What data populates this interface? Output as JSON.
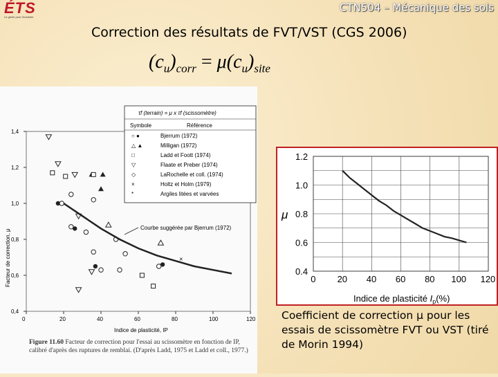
{
  "header": {
    "logo_text": "ÉTS",
    "logo_sub": "Le génie pour l'industrie",
    "course_title": "CTN504 – Mécanique des sols"
  },
  "slide": {
    "title": "Correction des résultats de FVT/VST (CGS 2006)",
    "formula": {
      "lhs_var": "c",
      "lhs_sub": "u",
      "lhs_index": "corr",
      "mu": "μ",
      "rhs_var": "c",
      "rhs_sub": "u",
      "rhs_index": "site",
      "equals": "="
    },
    "caption": "Coefficient de correction μ pour les essais de scissomètre FVT ou VST (tiré de Morin 1994)"
  },
  "scan": {
    "legend_header": "τf (terrain) = μ x τf (scissomètre)",
    "legend_col_symbol": "Symbole",
    "legend_col_ref": "Référence",
    "legend_refs": [
      "Bjerrum (1972)",
      "Milligan (1972)",
      "Ladd et Foott (1974)",
      "Flaate et Preber (1974)",
      "LaRochelle et coll. (1974)",
      "Holtz et Holm (1979)",
      "Argiles litées et varvées"
    ],
    "curve_label": "Courbe suggérée par Bjerrum (1972)",
    "figure_caption_bold": "Figure 11.60",
    "figure_caption": "Facteur de correction pour l'essai au scissomètre en fonction de IP, calibré d'après des ruptures de remblai. (D'après Ladd, 1975 et Ladd et coll., 1977.)",
    "ylabel": "Facteur de correction, μ",
    "xlabel": "Indice de plasticité, IP"
  },
  "chart_data": [
    {
      "type": "scatter",
      "title": "",
      "xlabel": "Indice de plasticité, IP",
      "ylabel": "Facteur de correction, μ",
      "xlim": [
        0,
        120
      ],
      "ylim": [
        0.4,
        1.4
      ],
      "xticks": [
        0,
        20,
        40,
        60,
        80,
        100,
        120
      ],
      "yticks": [
        0.4,
        0.6,
        0.8,
        1.0,
        1.2,
        1.4
      ],
      "ytick_labels": [
        "0,4",
        "0,6",
        "0,8",
        "1,0",
        "1,2",
        "1,4"
      ],
      "curve": {
        "x": [
          20,
          30,
          40,
          50,
          60,
          70,
          80,
          90,
          100,
          110
        ],
        "y": [
          1.0,
          0.93,
          0.86,
          0.8,
          0.75,
          0.71,
          0.68,
          0.65,
          0.63,
          0.61
        ]
      },
      "points": [
        {
          "x": 12,
          "y": 1.37,
          "m": "tri-down-open"
        },
        {
          "x": 17,
          "y": 1.22,
          "m": "tri-down-open"
        },
        {
          "x": 14,
          "y": 1.17,
          "m": "square-open"
        },
        {
          "x": 21,
          "y": 1.15,
          "m": "square-open"
        },
        {
          "x": 26,
          "y": 1.16,
          "m": "tri-down-open"
        },
        {
          "x": 17,
          "y": 1.0,
          "m": "circle-filled"
        },
        {
          "x": 19,
          "y": 1.0,
          "m": "circle-open"
        },
        {
          "x": 24,
          "y": 1.05,
          "m": "circle-open"
        },
        {
          "x": 36,
          "y": 1.02,
          "m": "circle-open"
        },
        {
          "x": 40,
          "y": 1.08,
          "m": "tri-filled"
        },
        {
          "x": 35,
          "y": 1.16,
          "m": "tri-filled"
        },
        {
          "x": 41,
          "y": 1.16,
          "m": "tri-filled"
        },
        {
          "x": 36,
          "y": 1.16,
          "m": "square-open"
        },
        {
          "x": 28,
          "y": 0.93,
          "m": "tri-down-open"
        },
        {
          "x": 24,
          "y": 0.87,
          "m": "circle-open"
        },
        {
          "x": 26,
          "y": 0.86,
          "m": "circle-filled"
        },
        {
          "x": 32,
          "y": 0.84,
          "m": "circle-open"
        },
        {
          "x": 36,
          "y": 0.73,
          "m": "circle-open"
        },
        {
          "x": 44,
          "y": 0.88,
          "m": "tri-open"
        },
        {
          "x": 48,
          "y": 0.8,
          "m": "circle-open"
        },
        {
          "x": 53,
          "y": 0.72,
          "m": "circle-open"
        },
        {
          "x": 40,
          "y": 0.63,
          "m": "circle-open"
        },
        {
          "x": 37,
          "y": 0.65,
          "m": "circle-filled"
        },
        {
          "x": 50,
          "y": 0.63,
          "m": "circle-open"
        },
        {
          "x": 62,
          "y": 0.6,
          "m": "square-open"
        },
        {
          "x": 72,
          "y": 0.78,
          "m": "tri-open"
        },
        {
          "x": 73,
          "y": 0.66,
          "m": "circle-filled"
        },
        {
          "x": 71,
          "y": 0.65,
          "m": "circle-open"
        },
        {
          "x": 83,
          "y": 0.69,
          "m": "x"
        },
        {
          "x": 68,
          "y": 0.54,
          "m": "square-open"
        },
        {
          "x": 28,
          "y": 0.52,
          "m": "tri-down-open"
        },
        {
          "x": 35,
          "y": 0.62,
          "m": "tri-down-open"
        }
      ]
    },
    {
      "type": "line",
      "title": "",
      "xlabel": "Indice de plasticité",
      "xlabel_sub": "p",
      "xlabel_unit": "(%)",
      "xlabel_var": "I",
      "ylabel": "μ",
      "xlim": [
        0,
        120
      ],
      "ylim": [
        0.4,
        1.2
      ],
      "xticks": [
        0,
        20,
        40,
        60,
        80,
        100,
        120
      ],
      "yticks": [
        0.4,
        0.6,
        0.8,
        1.0,
        1.2
      ],
      "ytick_labels": [
        "0.4",
        "0.6",
        "0.8",
        "1.0",
        "1.2"
      ],
      "grid": true,
      "x": [
        20,
        25,
        30,
        35,
        40,
        45,
        50,
        55,
        60,
        65,
        70,
        75,
        80,
        85,
        90,
        95,
        100,
        105
      ],
      "y": [
        1.1,
        1.05,
        1.01,
        0.97,
        0.93,
        0.89,
        0.86,
        0.82,
        0.79,
        0.76,
        0.73,
        0.7,
        0.68,
        0.66,
        0.64,
        0.63,
        0.615,
        0.6
      ]
    }
  ],
  "colors": {
    "background": "#f5e1b7",
    "frame": "#c02020",
    "logo": "#c0182b"
  }
}
